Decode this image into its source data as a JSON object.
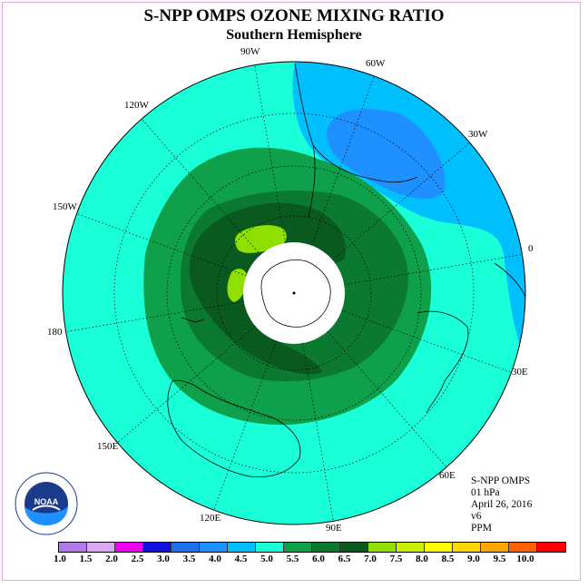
{
  "title": "S-NPP OMPS OZONE MIXING RATIO",
  "subtitle": "Southern Hemisphere",
  "longitude_labels": [
    "90W",
    "60W",
    "30W",
    "0",
    "30E",
    "60E",
    "90E",
    "120E",
    "150E",
    "180",
    "150W",
    "120W"
  ],
  "info": {
    "product": "S-NPP OMPS",
    "level": "01 hPa",
    "date": "April 26, 2016",
    "version": "v6",
    "units": "PPM"
  },
  "colorbar": {
    "ticks": [
      "1.0",
      "1.5",
      "2.0",
      "2.5",
      "3.0",
      "3.5",
      "4.0",
      "4.5",
      "5.0",
      "5.5",
      "6.0",
      "6.5",
      "7.0",
      "7.5",
      "8.0",
      "8.5",
      "9.0",
      "9.5",
      "10.0"
    ],
    "colors": [
      "#b07ae8",
      "#d8a8f0",
      "#f000f0",
      "#1010e0",
      "#1e6ff0",
      "#1e90ff",
      "#00bfff",
      "#19ffd8",
      "#0ea04a",
      "#0b7a30",
      "#0a5a20",
      "#8fe000",
      "#c8f000",
      "#ffff00",
      "#ffd700",
      "#ffa500",
      "#ff6000",
      "#ff0000",
      "#8b4513"
    ]
  },
  "logo_text": "NOAA",
  "map": {
    "projection": "south polar stereographic",
    "background_color": "#19ffd8"
  }
}
